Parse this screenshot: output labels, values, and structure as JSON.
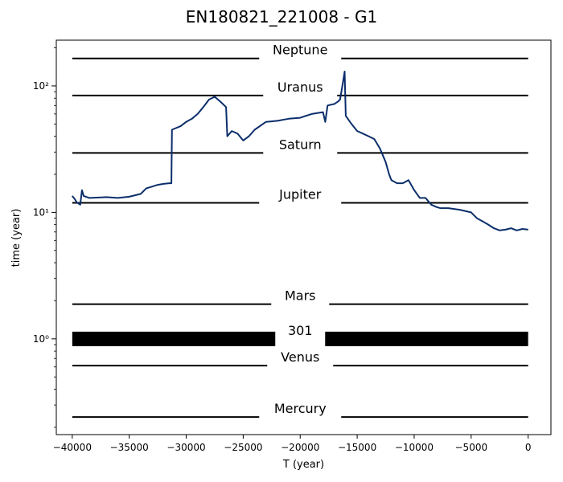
{
  "chart_data": {
    "type": "line",
    "title": "EN180821_221008 - G1",
    "xlabel": "T (year)",
    "ylabel": "time (year)",
    "xlim": [
      -41400,
      2000
    ],
    "ylim": [
      0.175,
      230
    ],
    "yscale": "log",
    "x_ticks": [
      -40000,
      -35000,
      -30000,
      -25000,
      -20000,
      -15000,
      -10000,
      -5000,
      0
    ],
    "x_tick_labels": [
      "−40000",
      "−35000",
      "−30000",
      "−25000",
      "−20000",
      "−15000",
      "−10000",
      "−5000",
      "0"
    ],
    "y_ticks": [
      1,
      10,
      100
    ],
    "y_tick_labels": [
      "10⁰",
      "10¹",
      "10²"
    ],
    "grid": false,
    "line_color": "#0b2e6b",
    "reference_lines": [
      {
        "label": "Neptune",
        "y": 165
      },
      {
        "label": "Uranus",
        "y": 84
      },
      {
        "label": "Saturn",
        "y": 29.5
      },
      {
        "label": "Jupiter",
        "y": 11.9
      },
      {
        "label": "Mars",
        "y": 1.88
      },
      {
        "label": "301",
        "y": 1.0
      },
      {
        "label": "Venus",
        "y": 0.615
      },
      {
        "label": "Mercury",
        "y": 0.241
      }
    ],
    "series": [
      {
        "x": [
          -40000,
          -39800,
          -39600,
          -39300,
          -39150,
          -39000,
          -38500,
          -37000,
          -36000,
          -35000,
          -34000,
          -33500,
          -33000,
          -32500,
          -32000,
          -31500,
          -31300,
          -31250,
          -31000,
          -30500,
          -30000,
          -29500,
          -29000,
          -28500,
          -28000,
          -27500,
          -27000,
          -26500,
          -26400,
          -26000,
          -25500,
          -25000,
          -24500,
          -24000,
          -23000,
          -22000,
          -21000,
          -20000,
          -19000,
          -18000,
          -17800,
          -17600,
          -17000,
          -16700,
          -16500,
          -16300,
          -16100,
          -16000,
          -15500,
          -15000,
          -14500,
          -14000,
          -13500,
          -13000,
          -12500,
          -12200,
          -12000,
          -11500,
          -11000,
          -10500,
          -10000,
          -9500,
          -9000,
          -8500,
          -8000,
          -7700,
          -7000,
          -6000,
          -5000,
          -4500,
          -4000,
          -3500,
          -3000,
          -2500,
          -2000,
          -1500,
          -1000,
          -500,
          0
        ],
        "y": [
          13.5,
          12.8,
          12.0,
          11.5,
          15.0,
          13.5,
          13.0,
          13.2,
          13.0,
          13.3,
          14.0,
          15.5,
          16.0,
          16.5,
          16.8,
          17.0,
          17.0,
          45,
          46,
          48,
          52,
          55,
          60,
          68,
          78,
          82,
          75,
          68,
          40,
          44,
          42,
          37,
          40,
          45,
          52,
          53,
          55,
          56,
          60,
          62,
          52,
          70,
          72,
          75,
          78,
          100,
          130,
          58,
          50,
          44,
          42,
          40,
          38,
          32,
          25,
          20,
          18,
          17,
          17,
          18,
          15,
          13,
          13,
          11.5,
          11.0,
          10.8,
          10.8,
          10.5,
          10.0,
          9.0,
          8.5,
          8.0,
          7.5,
          7.2,
          7.3,
          7.5,
          7.2,
          7.4,
          7.3
        ]
      }
    ]
  }
}
